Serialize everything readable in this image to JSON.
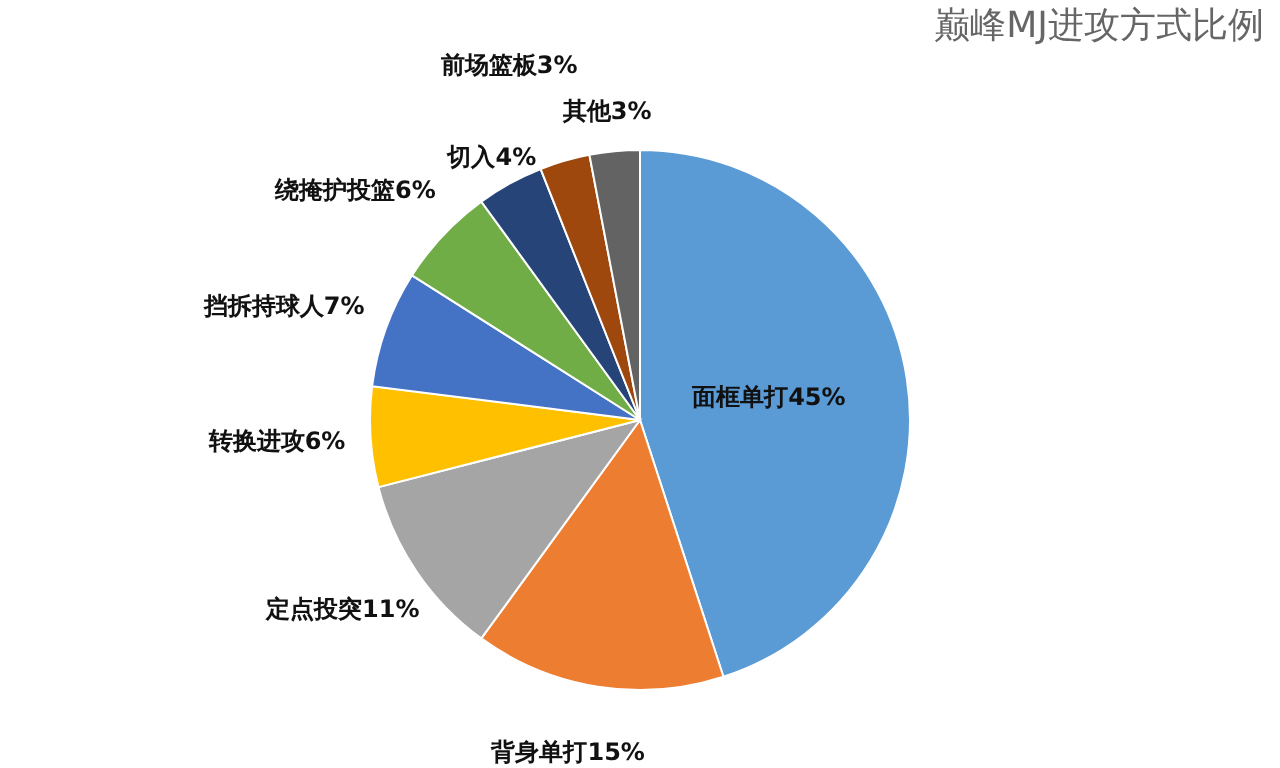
{
  "chart_data": {
    "type": "pie",
    "title": "巅峰MJ进攻方式比例",
    "categories": [
      "面框单打",
      "背身单打",
      "定点投突",
      "转换进攻",
      "挡拆持球人",
      "绕掩护投篮",
      "切入",
      "前场篮板",
      "其他"
    ],
    "values": [
      45,
      15,
      11,
      6,
      7,
      6,
      4,
      3,
      3
    ],
    "colors": [
      "#5b9bd5",
      "#ed7d31",
      "#a5a5a5",
      "#ffc000",
      "#4472c4",
      "#70ad47",
      "#264478",
      "#9e480e",
      "#636363"
    ],
    "value_labels": [
      "45%",
      "15%",
      "11%",
      "6%",
      "7%",
      "6%",
      "4%",
      "3%",
      "3%"
    ]
  }
}
